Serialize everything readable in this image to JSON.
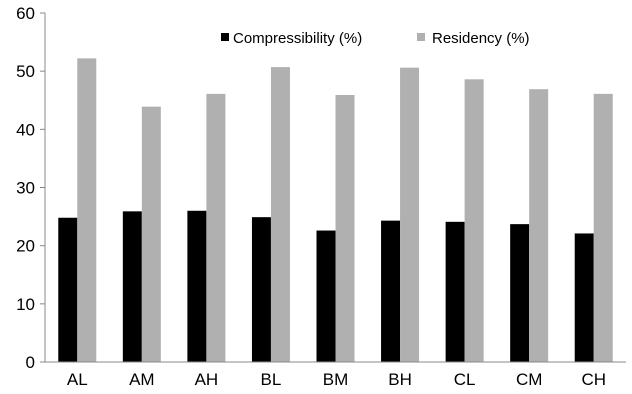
{
  "chart_data": {
    "type": "bar",
    "categories": [
      "AL",
      "AM",
      "AH",
      "BL",
      "BM",
      "BH",
      "CL",
      "CM",
      "CH"
    ],
    "series": [
      {
        "name": "Compressibility (%)",
        "values": [
          24.8,
          25.9,
          26.0,
          24.9,
          22.6,
          24.3,
          24.1,
          23.7,
          22.1
        ]
      },
      {
        "name": "Residency (%)",
        "values": [
          52.2,
          43.9,
          46.1,
          50.7,
          45.9,
          50.6,
          48.6,
          46.9,
          46.1
        ]
      }
    ],
    "colors": [
      "#000000",
      "#b0b0b0"
    ],
    "ylim": [
      0,
      60
    ],
    "yticks": [
      0,
      10,
      20,
      30,
      40,
      50,
      60
    ],
    "ytick_labels": [
      "0",
      "10",
      "20",
      "30",
      "40",
      "50",
      "60"
    ],
    "grid": false,
    "legend_position": "top-right"
  }
}
